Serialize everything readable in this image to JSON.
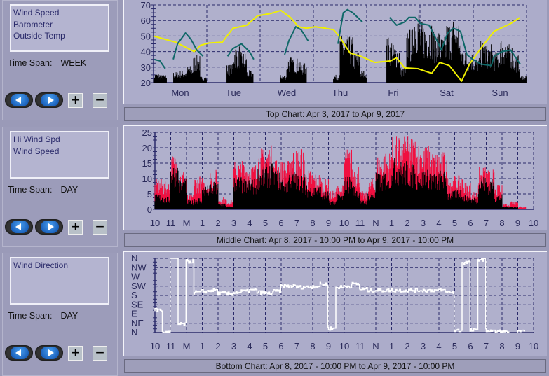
{
  "panels": [
    {
      "legend": [
        "Wind Speed",
        "Barometer",
        "Outside Temp"
      ],
      "time_span_label": "Time Span:",
      "time_span_value": "WEEK",
      "caption": "Top Chart:  Apr 3, 2017  to  Apr 9, 2017"
    },
    {
      "legend": [
        "Hi Wind Spd",
        "Wind Speed"
      ],
      "time_span_label": "Time Span:",
      "time_span_value": "DAY",
      "caption": "Middle Chart:  Apr 8, 2017 - 10:00 PM  to  Apr 9, 2017 - 10:00 PM"
    },
    {
      "legend": [
        "Wind Direction"
      ],
      "time_span_label": "Time Span:",
      "time_span_value": "DAY",
      "caption": "Bottom Chart:  Apr 8, 2017 - 10:00 PM  to  Apr 9, 2017 - 10:00 PM"
    }
  ],
  "buttons": {
    "prev_icon": "left-arrow-icon",
    "next_icon": "right-arrow-icon",
    "zoom_in": "+",
    "zoom_out": "−"
  },
  "colors": {
    "wind_speed": "#000000",
    "barometer": "#f0f000",
    "outside_temp": "#106868",
    "hi_wind": "#f01040",
    "wind_direction": "#ffffff",
    "plot_bg": "#b0b0cc",
    "grid": "#2a2a6a"
  },
  "chart_data": [
    {
      "type": "line",
      "x_unit": "days from Mon 00:00",
      "xlim": [
        0,
        7
      ],
      "ylim": [
        20,
        70
      ],
      "yticks": [
        20,
        30,
        40,
        50,
        60,
        70
      ],
      "xticklabels": [
        "Mon",
        "Tue",
        "Wed",
        "Thu",
        "Fri",
        "Sat",
        "Sun"
      ],
      "grid": true,
      "series": [
        {
          "name": "Wind Speed",
          "style": "spikes",
          "bin_days": 0.125,
          "values": [
            26,
            25,
            20,
            27,
            28,
            31,
            38,
            24,
            20,
            20,
            20,
            32,
            45,
            40,
            28,
            20,
            20,
            20,
            20,
            25,
            37,
            36,
            33,
            20,
            20,
            20,
            20,
            25,
            51,
            50,
            41,
            28,
            20,
            20,
            20,
            50,
            45,
            30,
            55,
            70,
            60,
            60,
            55,
            50,
            60,
            63,
            45,
            40,
            37,
            47,
            45,
            40,
            50,
            45,
            38,
            25
          ]
        },
        {
          "name": "Barometer",
          "segments": [
            [
              [
                0,
                50
              ],
              [
                0.42,
                46
              ],
              [
                0.76,
                40
              ],
              [
                0.88,
                44
              ],
              [
                1.04,
                45.5
              ],
              [
                1.29,
                46
              ],
              [
                1.49,
                55
              ],
              [
                1.75,
                57
              ],
              [
                1.95,
                63
              ],
              [
                2.2,
                64.5
              ],
              [
                2.39,
                66.5
              ],
              [
                2.57,
                62
              ],
              [
                2.72,
                56
              ],
              [
                2.87,
                55
              ],
              [
                3.03,
                56
              ],
              [
                3.23,
                55
              ],
              [
                3.38,
                54
              ],
              [
                3.48,
                50
              ],
              [
                3.69,
                39
              ],
              [
                3.89,
                37
              ],
              [
                4.15,
                33
              ],
              [
                4.45,
                34
              ],
              [
                4.56,
                36
              ],
              [
                4.71,
                29.5
              ],
              [
                4.96,
                29
              ],
              [
                5.22,
                26
              ],
              [
                5.37,
                33
              ],
              [
                5.55,
                31
              ],
              [
                5.78,
                21
              ],
              [
                5.93,
                32
              ],
              [
                6.14,
                42
              ],
              [
                6.39,
                53
              ],
              [
                6.7,
                58
              ],
              [
                6.88,
                62
              ]
            ]
          ]
        },
        {
          "name": "Outside Temp",
          "segments": [
            [
              [
                0,
                35
              ],
              [
                0.12,
                34
              ],
              [
                0.22,
                29
              ]
            ],
            [
              [
                0.37,
                35
              ],
              [
                0.45,
                45
              ],
              [
                0.6,
                52
              ],
              [
                0.7,
                48
              ],
              [
                0.81,
                41
              ],
              [
                0.93,
                37
              ]
            ],
            [
              [
                1.39,
                37
              ],
              [
                1.49,
                42
              ],
              [
                1.65,
                45
              ],
              [
                1.8,
                40
              ],
              [
                1.88,
                35
              ]
            ],
            [
              [
                2.46,
                38
              ],
              [
                2.54,
                47
              ],
              [
                2.67,
                56
              ],
              [
                2.77,
                54
              ],
              [
                2.9,
                47
              ]
            ],
            [
              [
                3.46,
                45
              ],
              [
                3.56,
                65
              ],
              [
                3.64,
                67
              ],
              [
                3.74,
                65
              ],
              [
                3.92,
                59
              ]
            ],
            [
              [
                4.43,
                62
              ],
              [
                4.56,
                57
              ],
              [
                4.71,
                59
              ],
              [
                4.79,
                62
              ],
              [
                4.91,
                62
              ],
              [
                5.01,
                58
              ],
              [
                5.17,
                57
              ],
              [
                5.32,
                47
              ],
              [
                5.4,
                41
              ],
              [
                5.52,
                52
              ],
              [
                5.63,
                55
              ],
              [
                5.76,
                53
              ],
              [
                5.88,
                38
              ],
              [
                5.99,
                35
              ],
              [
                6.14,
                32
              ],
              [
                6.34,
                31
              ],
              [
                6.39,
                37
              ],
              [
                6.54,
                40
              ],
              [
                6.7,
                41
              ],
              [
                6.88,
                32
              ]
            ]
          ]
        }
      ]
    },
    {
      "type": "line",
      "x_unit": "hours from Apr 8 10:00 PM",
      "xlim": [
        0,
        24
      ],
      "ylim": [
        0,
        25
      ],
      "yticks": [
        0,
        5,
        10,
        15,
        20,
        25
      ],
      "xticklabels": [
        "10",
        "11",
        "M",
        "1",
        "2",
        "3",
        "4",
        "5",
        "6",
        "7",
        "8",
        "9",
        "10",
        "11",
        "N",
        "1",
        "2",
        "3",
        "4",
        "5",
        "6",
        "7",
        "8",
        "9",
        "10"
      ],
      "grid": true,
      "sample_hours": 0.5,
      "series": [
        {
          "name": "Hi Wind Spd",
          "values": [
            10,
            9,
            18,
            13,
            5,
            11,
            10,
            13,
            4,
            3,
            16,
            16,
            15,
            20,
            21,
            17,
            16,
            20,
            20,
            13,
            12,
            10,
            6,
            8,
            20,
            15,
            6,
            10,
            18,
            19,
            24,
            24,
            24,
            22,
            21,
            19,
            19,
            11,
            11,
            9,
            6,
            14,
            13,
            8,
            2,
            3,
            1,
            0
          ]
        },
        {
          "name": "Wind Speed",
          "values": [
            5,
            4,
            15,
            10,
            3,
            4,
            8,
            9,
            2,
            1,
            11,
            10,
            10,
            14,
            15,
            13,
            11,
            13,
            12,
            8,
            8,
            6,
            3,
            5,
            11,
            8,
            3,
            6,
            12,
            13,
            17,
            16,
            15,
            13,
            14,
            12,
            13,
            6,
            7,
            5,
            4,
            11,
            10,
            5,
            1,
            1,
            0,
            0
          ]
        }
      ]
    },
    {
      "type": "line",
      "x_unit": "hours from Apr 8 10:00 PM",
      "xlim": [
        0,
        24
      ],
      "ylim": [
        0,
        360
      ],
      "yticklabels": [
        "N",
        "NE",
        "E",
        "SE",
        "S",
        "SW",
        "W",
        "NW",
        "N"
      ],
      "xticklabels": [
        "10",
        "11",
        "M",
        "1",
        "2",
        "3",
        "4",
        "5",
        "6",
        "7",
        "8",
        "9",
        "10",
        "11",
        "N",
        "1",
        "2",
        "3",
        "4",
        "5",
        "6",
        "7",
        "8",
        "9",
        "10"
      ],
      "grid": true,
      "sample_hours": 0.5,
      "series": [
        {
          "name": "Wind Direction",
          "values": [
            110,
            0,
            360,
            40,
            345,
            195,
            200,
            205,
            190,
            188,
            195,
            200,
            205,
            195,
            190,
            200,
            225,
            225,
            220,
            220,
            225,
            235,
            20,
            220,
            225,
            235,
            210,
            205,
            205,
            205,
            205,
            205,
            205,
            205,
            205,
            205,
            205,
            195,
            10,
            340,
            10,
            355,
            10,
            5,
            3,
            null,
            3,
            null
          ]
        }
      ]
    }
  ]
}
